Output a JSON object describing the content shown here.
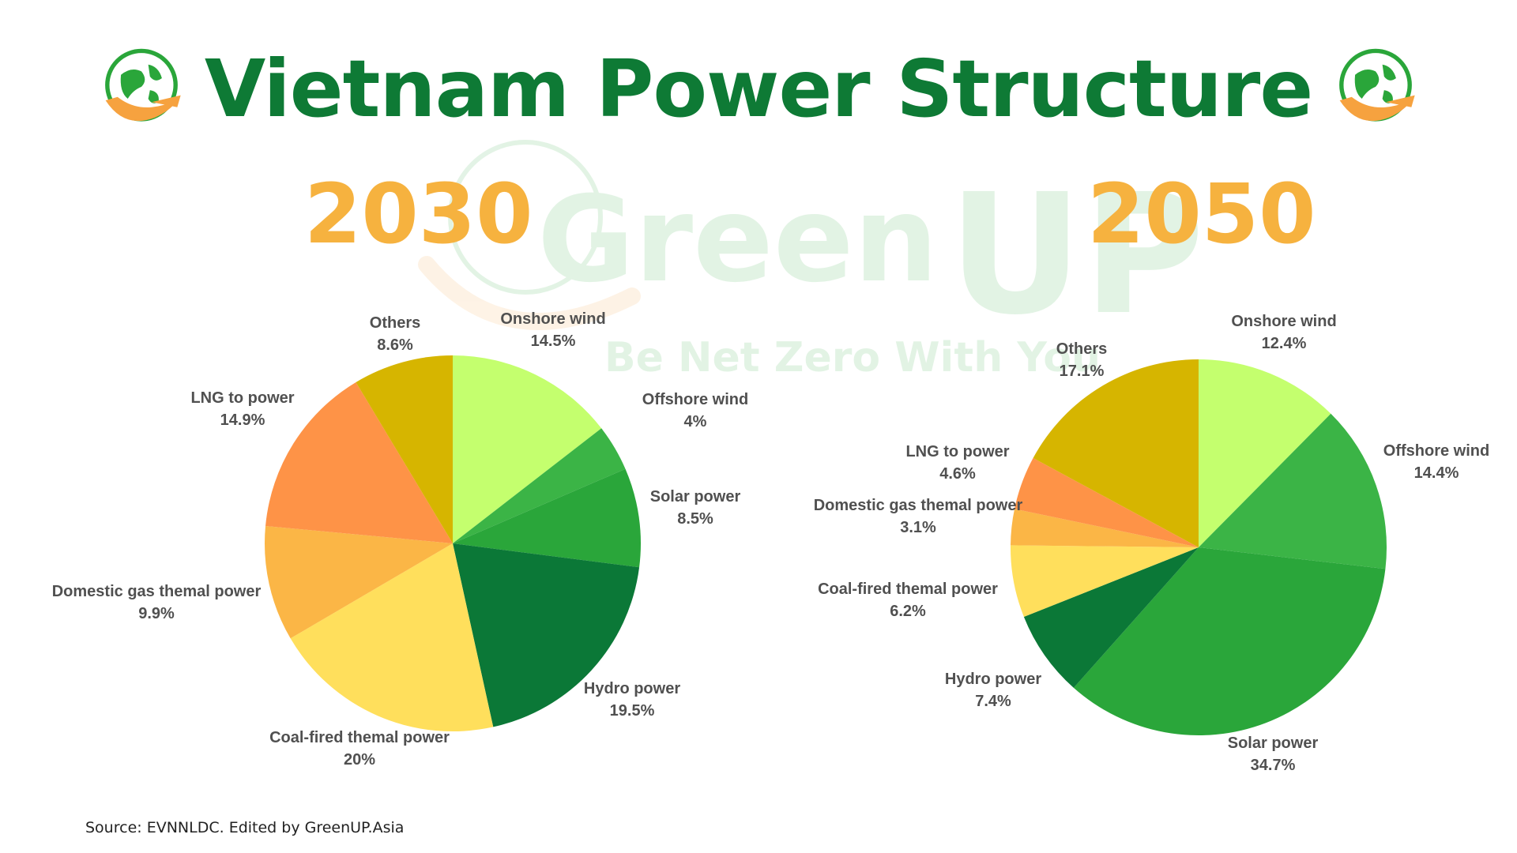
{
  "title": "Vietnam Power Structure",
  "source": "Source: EVNNLDC. Edited by GreenUP.Asia",
  "watermark": {
    "brand_green": "Green",
    "brand_up": "UP",
    "tagline": "Be Net Zero With You"
  },
  "colors": {
    "title": "#0e7a35",
    "year": "#f6b23f",
    "label": "#505050",
    "onshore_wind": "#c4ff6e",
    "offshore_wind": "#3bb446",
    "solar_power": "#2aa63a",
    "hydro_power": "#0b7837",
    "coal": "#ffdf5c",
    "domestic_gas": "#fbb646",
    "lng": "#fe9347",
    "others": "#d6b500"
  },
  "chart_data": [
    {
      "type": "pie",
      "title": "2030",
      "labels": [
        "Onshore wind",
        "Offshore wind",
        "Solar power",
        "Hydro power",
        "Coal-fired themal power",
        "Domestic gas themal power",
        "LNG to power",
        "Others"
      ],
      "values": [
        14.5,
        4,
        8.5,
        19.5,
        20,
        9.9,
        14.9,
        8.6
      ],
      "value_labels": [
        "14.5%",
        "4%",
        "8.5%",
        "19.5%",
        "20%",
        "9.9%",
        "14.9%",
        "8.6%"
      ],
      "colors": [
        "#c4ff6e",
        "#3bb446",
        "#2aa63a",
        "#0b7837",
        "#ffdf5c",
        "#fbb646",
        "#fe9347",
        "#d6b500"
      ],
      "start": "12 o'clock",
      "direction": "clockwise",
      "legend": "none"
    },
    {
      "type": "pie",
      "title": "2050",
      "labels": [
        "Onshore wind",
        "Offshore wind",
        "Solar power",
        "Hydro power",
        "Coal-fired themal power",
        "Domestic gas themal power",
        "LNG to power",
        "Others"
      ],
      "values": [
        12.4,
        14.4,
        34.7,
        7.4,
        6.2,
        3.1,
        4.6,
        17.1
      ],
      "value_labels": [
        "12.4%",
        "14.4%",
        "34.7%",
        "7.4%",
        "6.2%",
        "3.1%",
        "4.6%",
        "17.1%"
      ],
      "colors": [
        "#c4ff6e",
        "#3bb446",
        "#2aa63a",
        "#0b7837",
        "#ffdf5c",
        "#fbb646",
        "#fe9347",
        "#d6b500"
      ],
      "start": "12 o'clock",
      "direction": "clockwise",
      "legend": "none"
    }
  ]
}
